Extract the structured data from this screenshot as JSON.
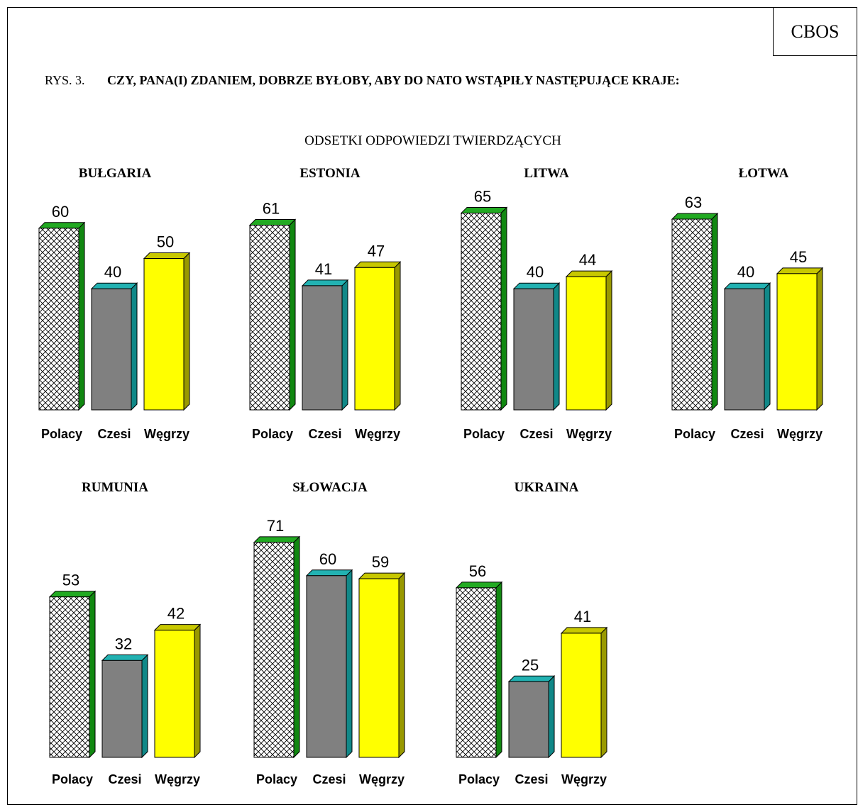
{
  "header": {
    "badge": "CBOS",
    "figure_label": "RYS. 3.",
    "question": "CZY, PANA(I) ZDANIEM, DOBRZE BYŁOBY, ABY DO NATO WSTĄPIŁY NASTĘPUJĄCE KRAJE:",
    "subtitle": "ODSETKI ODPOWIEDZI TWIERDZĄCYCH"
  },
  "colors": {
    "polacy_pattern": "#ffffff",
    "polacy_top": "#22aa22",
    "polacy_side": "#118811",
    "czesi_front": "#808080",
    "czesi_top": "#22b2b2",
    "czesi_side": "#118888",
    "wegrzy_front": "#ffff00",
    "wegrzy_top": "#c8c800",
    "wegrzy_side": "#999900"
  },
  "chart_data": [
    {
      "type": "bar",
      "title": "BUŁGARIA",
      "categories": [
        "Polacy",
        "Czesi",
        "Węgrzy"
      ],
      "values": [
        60,
        40,
        50
      ]
    },
    {
      "type": "bar",
      "title": "ESTONIA",
      "categories": [
        "Polacy",
        "Czesi",
        "Węgrzy"
      ],
      "values": [
        61,
        41,
        47
      ]
    },
    {
      "type": "bar",
      "title": "LITWA",
      "categories": [
        "Polacy",
        "Czesi",
        "Węgrzy"
      ],
      "values": [
        65,
        40,
        44
      ]
    },
    {
      "type": "bar",
      "title": "ŁOTWA",
      "categories": [
        "Polacy",
        "Czesi",
        "Węgrzy"
      ],
      "values": [
        63,
        40,
        45
      ]
    },
    {
      "type": "bar",
      "title": "RUMUNIA",
      "categories": [
        "Polacy",
        "Czesi",
        "Węgrzy"
      ],
      "values": [
        53,
        32,
        42
      ]
    },
    {
      "type": "bar",
      "title": "SŁOWACJA",
      "categories": [
        "Polacy",
        "Czesi",
        "Węgrzy"
      ],
      "values": [
        71,
        60,
        59
      ]
    },
    {
      "type": "bar",
      "title": "UKRAINA",
      "categories": [
        "Polacy",
        "Czesi",
        "Węgrzy"
      ],
      "values": [
        56,
        25,
        41
      ]
    }
  ]
}
